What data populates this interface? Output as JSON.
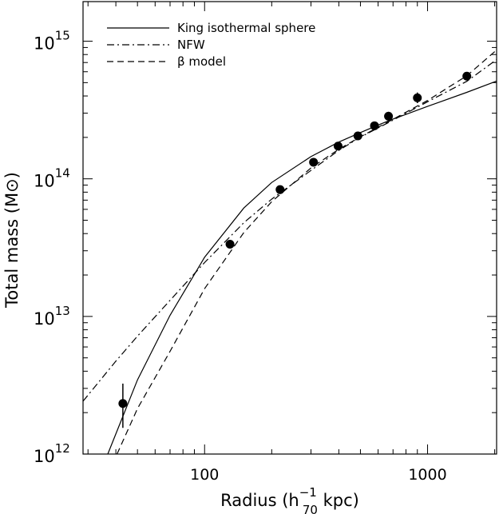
{
  "chart_data": {
    "type": "line",
    "title": "",
    "xlabel": {
      "main": "Radius (h",
      "sup": "−1",
      "sub": "70",
      "tail": " kpc)"
    },
    "ylabel": "Total mass (M⊙)",
    "xscale": "log",
    "yscale": "log",
    "xlim": [
      28.5,
      2040
    ],
    "ylim": [
      1000000000000.0,
      1940000000000000.0
    ],
    "x_ticks": [
      {
        "value": 100,
        "label": "100"
      },
      {
        "value": 1000,
        "label": "1000"
      }
    ],
    "y_ticks": [
      {
        "value": 1000000000000.0,
        "base": "10",
        "exp": "12"
      },
      {
        "value": 10000000000000.0,
        "base": "10",
        "exp": "13"
      },
      {
        "value": 100000000000000.0,
        "base": "10",
        "exp": "14"
      },
      {
        "value": 1000000000000000.0,
        "base": "10",
        "exp": "15"
      }
    ],
    "legend_position": "top-left",
    "series": [
      {
        "name": "King isothermal sphere",
        "style": "solid",
        "x": [
          36.8,
          50,
          70,
          100,
          150,
          200,
          300,
          400,
          500,
          600,
          700,
          800,
          1000,
          1500,
          2040
        ],
        "y": [
          1000000000000.0,
          3460000000000.0,
          10200000000000.0,
          26900000000000.0,
          61400000000000.0,
          94000000000000.0,
          145000000000000.0,
          185000000000000.0,
          217000000000000.0,
          246000000000000.0,
          272000000000000.0,
          294000000000000.0,
          336000000000000.0,
          425000000000000.0,
          513000000000000.0
        ]
      },
      {
        "name": "NFW",
        "style": "dashdot",
        "x": [
          28.5,
          40,
          50,
          70,
          100,
          150,
          200,
          300,
          400,
          500,
          700,
          1000,
          1500,
          2040
        ],
        "y": [
          2420000000000.0,
          4730000000000.0,
          7190000000000.0,
          13100000000000.0,
          24600000000000.0,
          48000000000000.0,
          71200000000000.0,
          115000000000000.0,
          161000000000000.0,
          201000000000000.0,
          267000000000000.0,
          363000000000000.0,
          511000000000000.0,
          735000000000000.0
        ]
      },
      {
        "name": "β model",
        "style": "dashed",
        "x": [
          40.5,
          50,
          70,
          100,
          150,
          200,
          300,
          400,
          500,
          700,
          1000,
          1500,
          2040
        ],
        "y": [
          1000000000000.0,
          2140000000000.0,
          5580000000000.0,
          15900000000000.0,
          40700000000000.0,
          68200000000000.0,
          120000000000000.0,
          164000000000000.0,
          202000000000000.0,
          271000000000000.0,
          371000000000000.0,
          561000000000000.0,
          864000000000000.0
        ]
      }
    ],
    "points": {
      "name": "data",
      "x": [
        43,
        130,
        218,
        308,
        397,
        487,
        578,
        668,
        900,
        1500
      ],
      "y": [
        2330000000000.0,
        33500000000000.0,
        83500000000000.0,
        132000000000000.0,
        173000000000000.0,
        205000000000000.0,
        243000000000000.0,
        285000000000000.0,
        388000000000000.0,
        557000000000000.0
      ],
      "y_low": [
        1550000000000.0,
        31500000000000.0,
        77500000000000.0,
        125000000000000.0,
        166000000000000.0,
        196000000000000.0,
        228000000000000.0,
        263000000000000.0,
        355000000000000.0,
        526000000000000.0
      ],
      "y_high": [
        3250000000000.0,
        35500000000000.0,
        89500000000000.0,
        139000000000000.0,
        180000000000000.0,
        214000000000000.0,
        258000000000000.0,
        307000000000000.0,
        424000000000000.0,
        593000000000000.0
      ]
    }
  }
}
